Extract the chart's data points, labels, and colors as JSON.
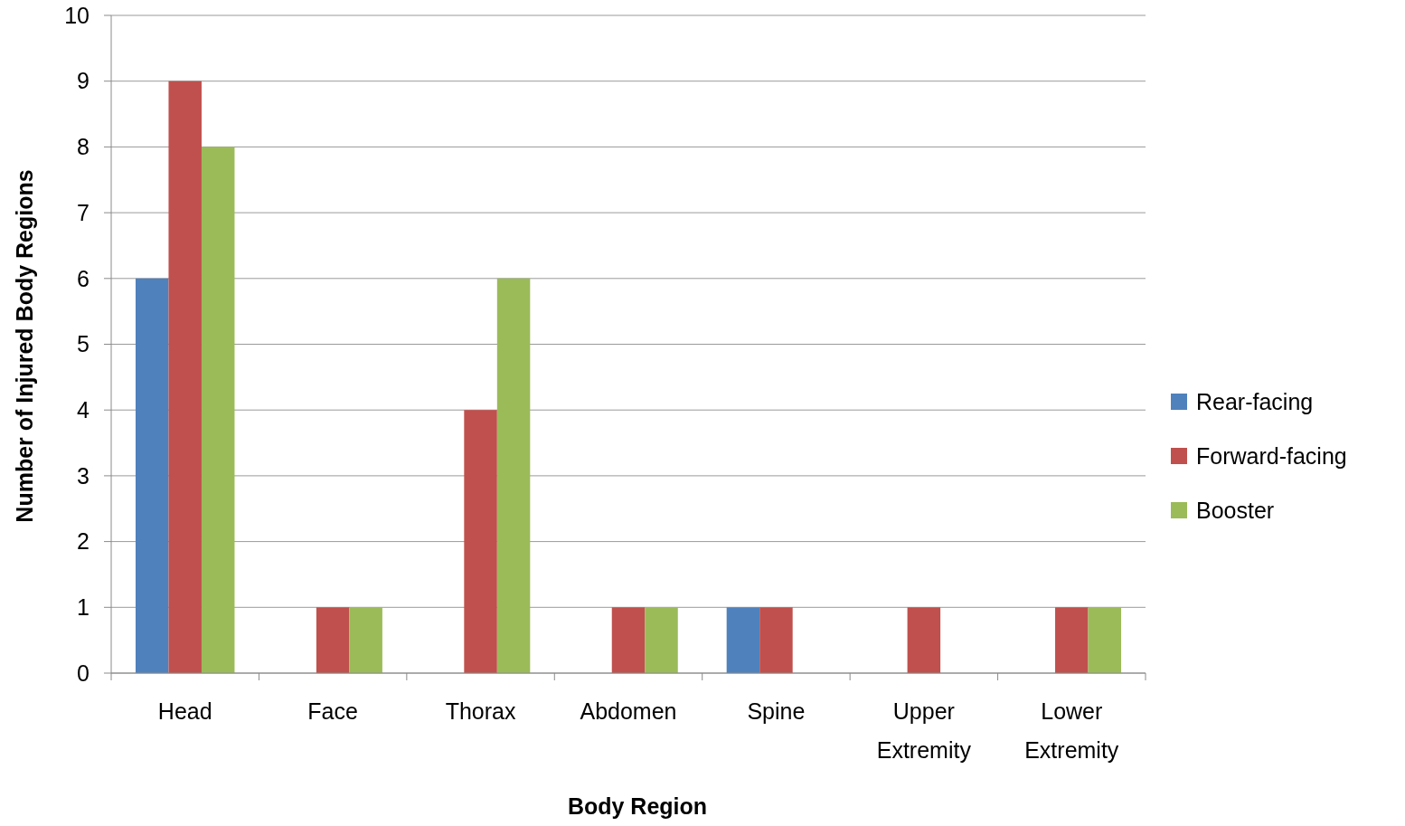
{
  "chart_data": {
    "type": "bar",
    "xlabel": "Body Region",
    "ylabel": "Number of Injured Body Regions",
    "categories": [
      "Head",
      "Face",
      "Thorax",
      "Abdomen",
      "Spine",
      "Upper Extremity",
      "Lower Extremity"
    ],
    "series": [
      {
        "name": "Rear-facing",
        "color": "#4f81bd",
        "values": [
          6,
          0,
          0,
          0,
          1,
          0,
          0
        ]
      },
      {
        "name": "Forward-facing",
        "color": "#c0504d",
        "values": [
          9,
          1,
          4,
          1,
          1,
          1,
          1
        ]
      },
      {
        "name": "Booster",
        "color": "#9bbb59",
        "values": [
          8,
          1,
          6,
          1,
          0,
          0,
          1
        ]
      }
    ],
    "ylim": [
      0,
      10
    ],
    "yticks": [
      0,
      1,
      2,
      3,
      4,
      5,
      6,
      7,
      8,
      9,
      10
    ],
    "grid": "y",
    "legend": "right"
  }
}
